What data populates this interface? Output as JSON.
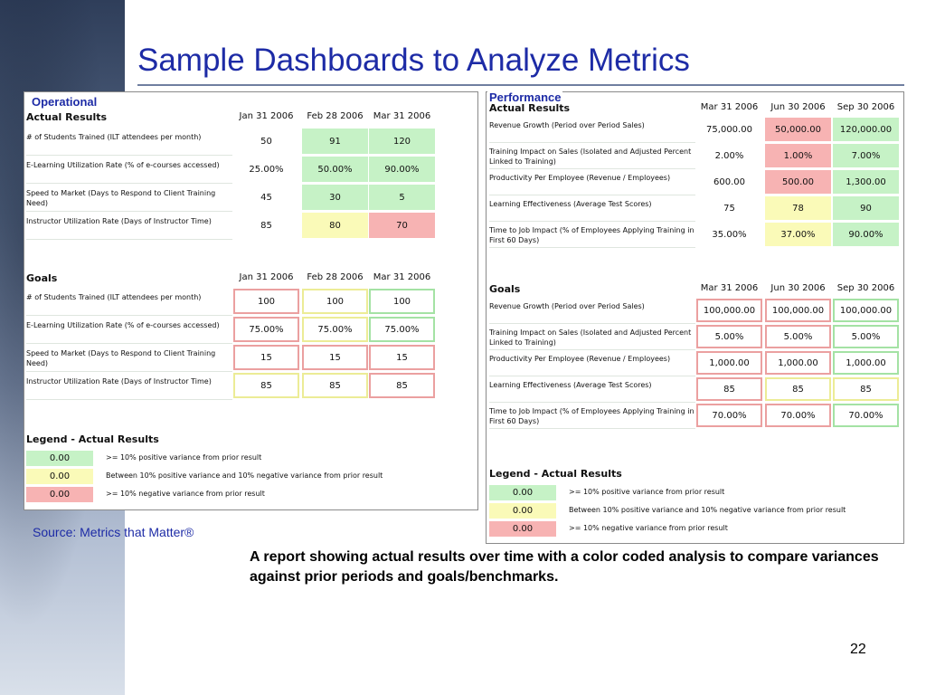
{
  "slide": {
    "title": "Sample Dashboards to Analyze Metrics",
    "source": "Source: Metrics that Matter®",
    "caption": "A report showing actual results over time with a color coded analysis to compare variances against prior periods and goals/benchmarks.",
    "page_number": "22"
  },
  "colors": {
    "green": "#c6f2c6",
    "yellow": "#fafab8",
    "red": "#f7b3b3",
    "title": "#1d2ba6"
  },
  "operational": {
    "tag": "Operational",
    "actual": {
      "title": "Actual Results",
      "columns": [
        "Jan 31 2006",
        "Feb 28 2006",
        "Mar 31 2006"
      ],
      "rows": [
        {
          "label": "# of Students Trained (ILT attendees per month)",
          "values": [
            "50",
            "91",
            "120"
          ],
          "colors": [
            "plain",
            "green",
            "green"
          ]
        },
        {
          "label": "E-Learning Utilization Rate (% of e-courses accessed)",
          "values": [
            "25.00%",
            "50.00%",
            "90.00%"
          ],
          "colors": [
            "plain",
            "green",
            "green"
          ]
        },
        {
          "label": "Speed to Market (Days to Respond to Client Training Need)",
          "values": [
            "45",
            "30",
            "5"
          ],
          "colors": [
            "plain",
            "green",
            "green"
          ]
        },
        {
          "label": "Instructor Utilization Rate (Days of Instructor Time)",
          "values": [
            "85",
            "80",
            "70"
          ],
          "colors": [
            "plain",
            "yellow",
            "red"
          ]
        }
      ]
    },
    "goals": {
      "title": "Goals",
      "columns": [
        "Jan 31 2006",
        "Feb 28 2006",
        "Mar 31 2006"
      ],
      "rows": [
        {
          "label": "# of Students Trained (ILT attendees per month)",
          "values": [
            "100",
            "100",
            "100"
          ],
          "colors": [
            "or",
            "oy",
            "og"
          ]
        },
        {
          "label": "E-Learning Utilization Rate (% of e-courses accessed)",
          "values": [
            "75.00%",
            "75.00%",
            "75.00%"
          ],
          "colors": [
            "or",
            "oy",
            "og"
          ]
        },
        {
          "label": "Speed to Market (Days to Respond to Client Training Need)",
          "values": [
            "15",
            "15",
            "15"
          ],
          "colors": [
            "or",
            "or",
            "or"
          ]
        },
        {
          "label": "Instructor Utilization Rate (Days of Instructor Time)",
          "values": [
            "85",
            "85",
            "85"
          ],
          "colors": [
            "oy",
            "oy",
            "or"
          ]
        }
      ]
    },
    "legend": {
      "title": "Legend - Actual Results",
      "items": [
        {
          "value": "0.00",
          "color": "green",
          "text": ">= 10% positive variance from prior result"
        },
        {
          "value": "0.00",
          "color": "yellow",
          "text": "Between 10% positive variance and 10% negative variance from prior result"
        },
        {
          "value": "0.00",
          "color": "red",
          "text": ">= 10% negative variance from prior result"
        }
      ]
    }
  },
  "performance": {
    "tag": "Performance",
    "actual": {
      "title": "Actual Results",
      "columns": [
        "Mar 31 2006",
        "Jun 30 2006",
        "Sep 30 2006"
      ],
      "rows": [
        {
          "label": "Revenue Growth (Period over Period Sales)",
          "values": [
            "75,000.00",
            "50,000.00",
            "120,000.00"
          ],
          "colors": [
            "plain",
            "red",
            "green"
          ]
        },
        {
          "label": "Training Impact on Sales (Isolated and Adjusted Percent Linked to Training)",
          "values": [
            "2.00%",
            "1.00%",
            "7.00%"
          ],
          "colors": [
            "plain",
            "red",
            "green"
          ]
        },
        {
          "label": "Productivity Per Employee (Revenue / Employees)",
          "values": [
            "600.00",
            "500.00",
            "1,300.00"
          ],
          "colors": [
            "plain",
            "red",
            "green"
          ]
        },
        {
          "label": "Learning Effectiveness (Average Test Scores)",
          "values": [
            "75",
            "78",
            "90"
          ],
          "colors": [
            "plain",
            "yellow",
            "green"
          ]
        },
        {
          "label": "Time to Job Impact (% of Employees Applying Training in First 60 Days)",
          "values": [
            "35.00%",
            "37.00%",
            "90.00%"
          ],
          "colors": [
            "plain",
            "yellow",
            "green"
          ]
        }
      ]
    },
    "goals": {
      "title": "Goals",
      "columns": [
        "Mar 31 2006",
        "Jun 30 2006",
        "Sep 30 2006"
      ],
      "rows": [
        {
          "label": "Revenue Growth (Period over Period Sales)",
          "values": [
            "100,000.00",
            "100,000.00",
            "100,000.00"
          ],
          "colors": [
            "or",
            "or",
            "og"
          ]
        },
        {
          "label": "Training Impact on Sales (Isolated and Adjusted Percent Linked to Training)",
          "values": [
            "5.00%",
            "5.00%",
            "5.00%"
          ],
          "colors": [
            "or",
            "or",
            "og"
          ]
        },
        {
          "label": "Productivity Per Employee (Revenue / Employees)",
          "values": [
            "1,000.00",
            "1,000.00",
            "1,000.00"
          ],
          "colors": [
            "or",
            "or",
            "og"
          ]
        },
        {
          "label": "Learning Effectiveness (Average Test Scores)",
          "values": [
            "85",
            "85",
            "85"
          ],
          "colors": [
            "or",
            "oy",
            "oy"
          ]
        },
        {
          "label": "Time to Job Impact (% of Employees Applying Training in First 60 Days)",
          "values": [
            "70.00%",
            "70.00%",
            "70.00%"
          ],
          "colors": [
            "or",
            "or",
            "og"
          ]
        }
      ]
    },
    "legend": {
      "title": "Legend - Actual Results",
      "items": [
        {
          "value": "0.00",
          "color": "green",
          "text": ">= 10% positive variance from prior result"
        },
        {
          "value": "0.00",
          "color": "yellow",
          "text": "Between 10% positive variance and 10% negative variance from prior result"
        },
        {
          "value": "0.00",
          "color": "red",
          "text": ">= 10% negative variance from prior result"
        }
      ]
    }
  }
}
